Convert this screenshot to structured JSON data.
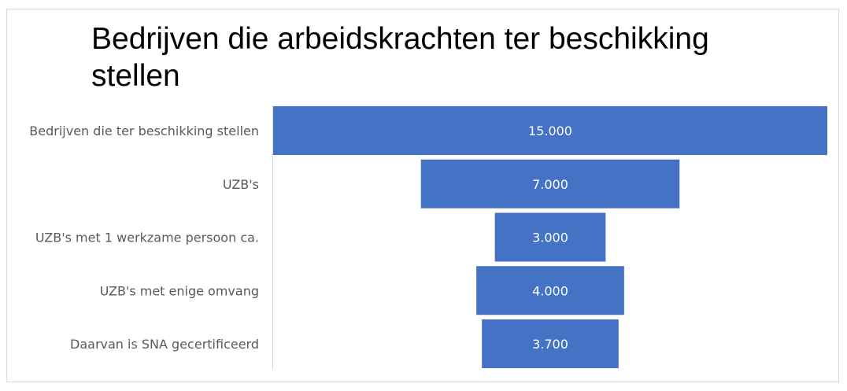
{
  "chart_data": {
    "type": "funnel",
    "title": "Bedrijven die arbeidskrachten ter beschikking stellen",
    "categories": [
      "Bedrijven die ter beschikking stellen",
      "UZB's",
      "UZB's met 1 werkzame persoon ca.",
      "UZB's met enige omvang",
      "Daarvan is SNA gecertificeerd"
    ],
    "values": [
      15000,
      7000,
      3000,
      4000,
      3700
    ],
    "data_labels": [
      "15.000",
      "7.000",
      "3.000",
      "4.000",
      "3.700"
    ],
    "bar_color": "#4472C4",
    "legend": "none",
    "grid": false
  }
}
